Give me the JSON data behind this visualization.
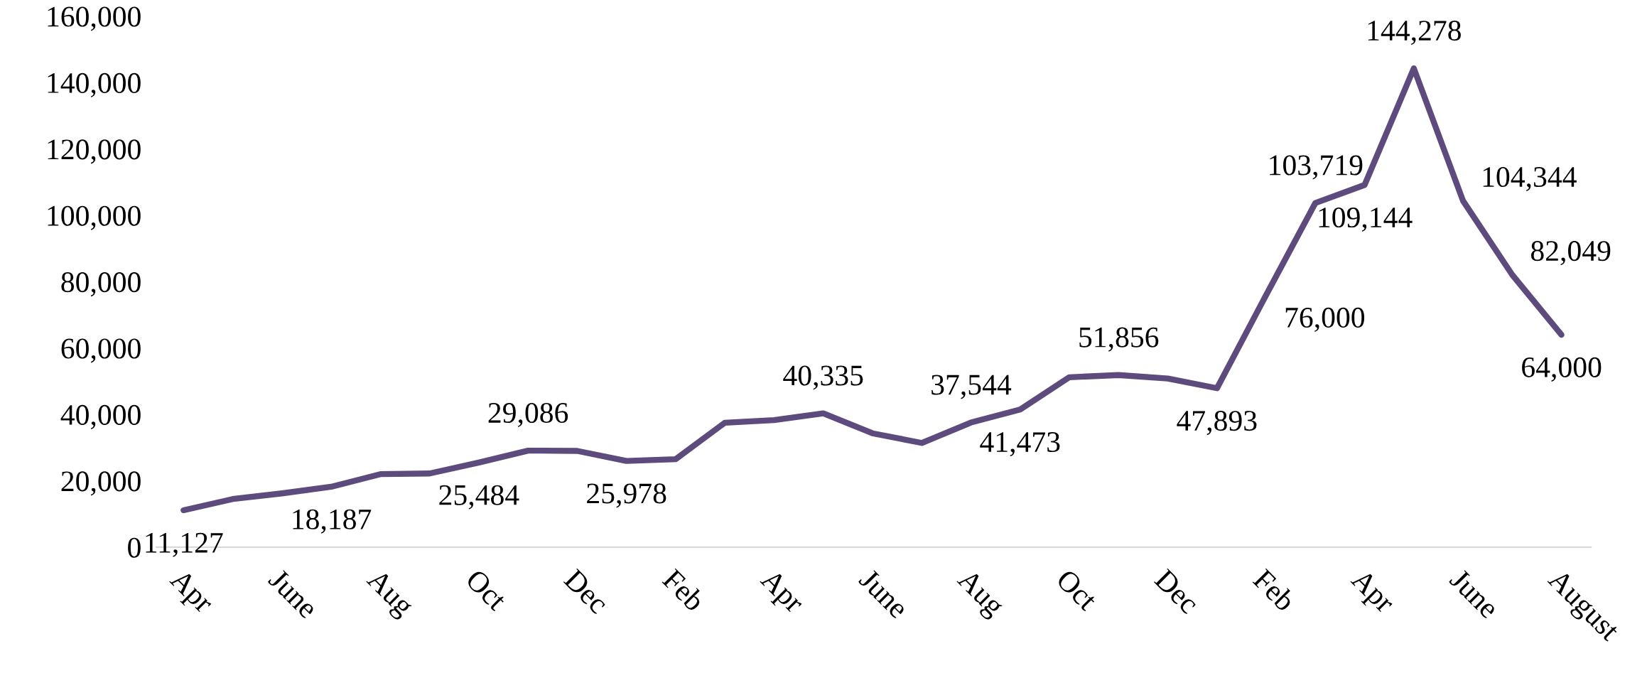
{
  "chart_data": {
    "type": "line",
    "categories": [
      "Apr",
      null,
      "June",
      null,
      "Aug",
      null,
      "Oct",
      null,
      "Dec",
      null,
      "Feb",
      null,
      "Apr",
      null,
      "June",
      null,
      "Aug",
      null,
      "Oct",
      null,
      "Dec",
      null,
      "Feb",
      null,
      "Apr",
      null,
      "June",
      null,
      "August"
    ],
    "series": [
      {
        "color": "#5e4b7d",
        "values": [
          11127,
          14500,
          16200,
          18187,
          22000,
          22200,
          25484,
          29086,
          29000,
          25978,
          26500,
          37500,
          38300,
          40335,
          34300,
          31400,
          37544,
          41473,
          51200,
          51856,
          50800,
          47893,
          76000,
          103719,
          109144,
          144278,
          104344,
          82049,
          64000
        ],
        "value_labels": [
          "11,127",
          null,
          null,
          "18,187",
          null,
          null,
          "25,484",
          "29,086",
          null,
          "25,978",
          null,
          null,
          null,
          "40,335",
          null,
          null,
          "37,544",
          "41,473",
          null,
          "51,856",
          null,
          "47,893",
          "76,000",
          "103,719",
          "109,144",
          "144,278",
          "104,344",
          "82,049",
          "64,000"
        ]
      }
    ],
    "ylim": [
      0,
      160000
    ],
    "yticks": [
      {
        "value": 0,
        "label": "0"
      },
      {
        "value": 20000,
        "label": "20,000"
      },
      {
        "value": 40000,
        "label": "40,000"
      },
      {
        "value": 60000,
        "label": "60,000"
      },
      {
        "value": 80000,
        "label": "80,000"
      },
      {
        "value": 100000,
        "label": "100,000"
      },
      {
        "value": 120000,
        "label": "120,000"
      },
      {
        "value": 140000,
        "label": "140,000"
      },
      {
        "value": 160000,
        "label": "160,000"
      }
    ],
    "grid": false,
    "marker": "none",
    "line_style": "solid"
  }
}
